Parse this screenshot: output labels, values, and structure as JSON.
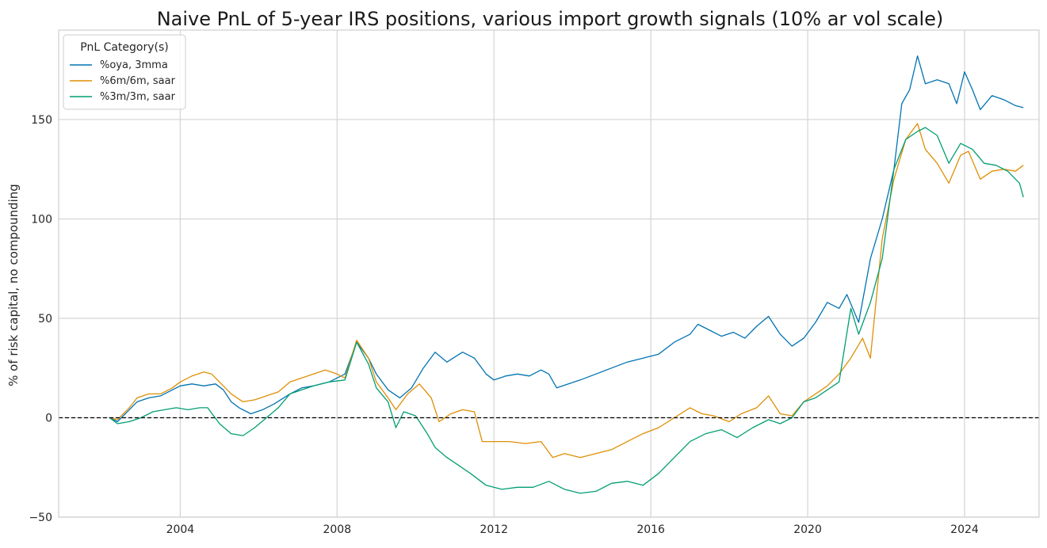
{
  "chart_data": {
    "type": "line",
    "title": "Naive PnL of 5-year IRS positions, various import growth signals (10% ar vol scale)",
    "xlabel": "",
    "ylabel": "% of risk capital, no compounding",
    "xlim": [
      2000.9,
      2025.9
    ],
    "ylim": [
      -50,
      195
    ],
    "x_ticks": [
      2004,
      2008,
      2012,
      2016,
      2020,
      2024
    ],
    "x_tick_labels": [
      "2004",
      "2008",
      "2012",
      "2016",
      "2020",
      "2024"
    ],
    "y_ticks": [
      -50,
      0,
      50,
      100,
      150
    ],
    "y_tick_labels": [
      "−50",
      "0",
      "50",
      "100",
      "150"
    ],
    "grid": true,
    "zero_line": true,
    "legend": {
      "title": "PnL Category(s)",
      "placement": "top-left"
    },
    "series": [
      {
        "name": "%oya, 3mma",
        "color": "#0173b2",
        "points": [
          [
            2002.2,
            0
          ],
          [
            2002.4,
            -2
          ],
          [
            2002.7,
            4
          ],
          [
            2002.9,
            8
          ],
          [
            2003.2,
            10
          ],
          [
            2003.5,
            11
          ],
          [
            2003.8,
            14
          ],
          [
            2004.0,
            16
          ],
          [
            2004.3,
            17
          ],
          [
            2004.6,
            16
          ],
          [
            2004.9,
            17
          ],
          [
            2005.1,
            14
          ],
          [
            2005.3,
            8
          ],
          [
            2005.5,
            5
          ],
          [
            2005.8,
            2
          ],
          [
            2006.1,
            4
          ],
          [
            2006.4,
            7
          ],
          [
            2006.8,
            12
          ],
          [
            2007.1,
            15
          ],
          [
            2007.4,
            16
          ],
          [
            2007.8,
            18
          ],
          [
            2008.2,
            22
          ],
          [
            2008.5,
            38
          ],
          [
            2008.8,
            30
          ],
          [
            2009.0,
            22
          ],
          [
            2009.3,
            14
          ],
          [
            2009.6,
            10
          ],
          [
            2009.9,
            15
          ],
          [
            2010.2,
            25
          ],
          [
            2010.5,
            33
          ],
          [
            2010.8,
            28
          ],
          [
            2011.2,
            33
          ],
          [
            2011.5,
            30
          ],
          [
            2011.8,
            22
          ],
          [
            2012.0,
            19
          ],
          [
            2012.3,
            21
          ],
          [
            2012.6,
            22
          ],
          [
            2012.9,
            21
          ],
          [
            2013.2,
            24
          ],
          [
            2013.4,
            22
          ],
          [
            2013.6,
            15
          ],
          [
            2013.9,
            17
          ],
          [
            2014.2,
            19
          ],
          [
            2014.6,
            22
          ],
          [
            2015.0,
            25
          ],
          [
            2015.4,
            28
          ],
          [
            2015.8,
            30
          ],
          [
            2016.2,
            32
          ],
          [
            2016.6,
            38
          ],
          [
            2017.0,
            42
          ],
          [
            2017.2,
            47
          ],
          [
            2017.5,
            44
          ],
          [
            2017.8,
            41
          ],
          [
            2018.1,
            43
          ],
          [
            2018.4,
            40
          ],
          [
            2018.7,
            46
          ],
          [
            2019.0,
            51
          ],
          [
            2019.3,
            42
          ],
          [
            2019.6,
            36
          ],
          [
            2019.9,
            40
          ],
          [
            2020.2,
            48
          ],
          [
            2020.5,
            58
          ],
          [
            2020.8,
            55
          ],
          [
            2021.0,
            62
          ],
          [
            2021.3,
            48
          ],
          [
            2021.6,
            80
          ],
          [
            2021.9,
            100
          ],
          [
            2022.2,
            125
          ],
          [
            2022.4,
            158
          ],
          [
            2022.6,
            165
          ],
          [
            2022.8,
            182
          ],
          [
            2023.0,
            168
          ],
          [
            2023.3,
            170
          ],
          [
            2023.6,
            168
          ],
          [
            2023.8,
            158
          ],
          [
            2024.0,
            174
          ],
          [
            2024.2,
            165
          ],
          [
            2024.4,
            155
          ],
          [
            2024.7,
            162
          ],
          [
            2025.0,
            160
          ],
          [
            2025.3,
            157
          ],
          [
            2025.5,
            156
          ]
        ]
      },
      {
        "name": "%6m/6m, saar",
        "color": "#de8f05",
        "points": [
          [
            2002.2,
            0
          ],
          [
            2002.4,
            -1
          ],
          [
            2002.7,
            5
          ],
          [
            2002.9,
            10
          ],
          [
            2003.2,
            12
          ],
          [
            2003.5,
            12
          ],
          [
            2003.8,
            15
          ],
          [
            2004.0,
            18
          ],
          [
            2004.3,
            21
          ],
          [
            2004.6,
            23
          ],
          [
            2004.8,
            22
          ],
          [
            2005.0,
            18
          ],
          [
            2005.3,
            12
          ],
          [
            2005.6,
            8
          ],
          [
            2005.9,
            9
          ],
          [
            2006.2,
            11
          ],
          [
            2006.5,
            13
          ],
          [
            2006.8,
            18
          ],
          [
            2007.1,
            20
          ],
          [
            2007.4,
            22
          ],
          [
            2007.7,
            24
          ],
          [
            2008.0,
            22
          ],
          [
            2008.2,
            20
          ],
          [
            2008.5,
            39
          ],
          [
            2008.8,
            30
          ],
          [
            2009.0,
            18
          ],
          [
            2009.3,
            10
          ],
          [
            2009.5,
            4
          ],
          [
            2009.8,
            12
          ],
          [
            2010.1,
            17
          ],
          [
            2010.4,
            10
          ],
          [
            2010.6,
            -2
          ],
          [
            2010.9,
            2
          ],
          [
            2011.2,
            4
          ],
          [
            2011.5,
            3
          ],
          [
            2011.7,
            -12
          ],
          [
            2012.0,
            -12
          ],
          [
            2012.4,
            -12
          ],
          [
            2012.8,
            -13
          ],
          [
            2013.2,
            -12
          ],
          [
            2013.5,
            -20
          ],
          [
            2013.8,
            -18
          ],
          [
            2014.2,
            -20
          ],
          [
            2014.6,
            -18
          ],
          [
            2015.0,
            -16
          ],
          [
            2015.4,
            -12
          ],
          [
            2015.8,
            -8
          ],
          [
            2016.2,
            -5
          ],
          [
            2016.6,
            0
          ],
          [
            2017.0,
            5
          ],
          [
            2017.3,
            2
          ],
          [
            2017.6,
            1
          ],
          [
            2018.0,
            -2
          ],
          [
            2018.3,
            2
          ],
          [
            2018.7,
            5
          ],
          [
            2019.0,
            11
          ],
          [
            2019.3,
            2
          ],
          [
            2019.6,
            1
          ],
          [
            2019.9,
            8
          ],
          [
            2020.2,
            12
          ],
          [
            2020.5,
            16
          ],
          [
            2020.8,
            22
          ],
          [
            2021.1,
            30
          ],
          [
            2021.4,
            40
          ],
          [
            2021.6,
            30
          ],
          [
            2021.9,
            90
          ],
          [
            2022.2,
            120
          ],
          [
            2022.5,
            140
          ],
          [
            2022.8,
            148
          ],
          [
            2023.0,
            135
          ],
          [
            2023.3,
            128
          ],
          [
            2023.6,
            118
          ],
          [
            2023.9,
            132
          ],
          [
            2024.1,
            134
          ],
          [
            2024.4,
            120
          ],
          [
            2024.7,
            124
          ],
          [
            2025.0,
            125
          ],
          [
            2025.3,
            124
          ],
          [
            2025.5,
            127
          ]
        ]
      },
      {
        "name": "%3m/3m, saar",
        "color": "#029e73",
        "points": [
          [
            2002.2,
            0
          ],
          [
            2002.4,
            -3
          ],
          [
            2002.7,
            -2
          ],
          [
            2003.0,
            0
          ],
          [
            2003.3,
            3
          ],
          [
            2003.6,
            4
          ],
          [
            2003.9,
            5
          ],
          [
            2004.2,
            4
          ],
          [
            2004.5,
            5
          ],
          [
            2004.7,
            5
          ],
          [
            2005.0,
            -3
          ],
          [
            2005.3,
            -8
          ],
          [
            2005.6,
            -9
          ],
          [
            2005.9,
            -5
          ],
          [
            2006.2,
            0
          ],
          [
            2006.5,
            5
          ],
          [
            2006.8,
            12
          ],
          [
            2007.1,
            14
          ],
          [
            2007.4,
            16
          ],
          [
            2007.8,
            18
          ],
          [
            2008.2,
            19
          ],
          [
            2008.5,
            38
          ],
          [
            2008.8,
            27
          ],
          [
            2009.0,
            15
          ],
          [
            2009.3,
            8
          ],
          [
            2009.5,
            -5
          ],
          [
            2009.7,
            3
          ],
          [
            2010.0,
            1
          ],
          [
            2010.3,
            -8
          ],
          [
            2010.5,
            -15
          ],
          [
            2010.8,
            -20
          ],
          [
            2011.1,
            -24
          ],
          [
            2011.4,
            -28
          ],
          [
            2011.8,
            -34
          ],
          [
            2012.2,
            -36
          ],
          [
            2012.6,
            -35
          ],
          [
            2013.0,
            -35
          ],
          [
            2013.4,
            -32
          ],
          [
            2013.8,
            -36
          ],
          [
            2014.2,
            -38
          ],
          [
            2014.6,
            -37
          ],
          [
            2015.0,
            -33
          ],
          [
            2015.4,
            -32
          ],
          [
            2015.8,
            -34
          ],
          [
            2016.2,
            -28
          ],
          [
            2016.6,
            -20
          ],
          [
            2017.0,
            -12
          ],
          [
            2017.4,
            -8
          ],
          [
            2017.8,
            -6
          ],
          [
            2018.2,
            -10
          ],
          [
            2018.6,
            -5
          ],
          [
            2019.0,
            -1
          ],
          [
            2019.3,
            -3
          ],
          [
            2019.6,
            0
          ],
          [
            2019.9,
            8
          ],
          [
            2020.2,
            10
          ],
          [
            2020.5,
            14
          ],
          [
            2020.8,
            18
          ],
          [
            2021.1,
            55
          ],
          [
            2021.3,
            42
          ],
          [
            2021.6,
            58
          ],
          [
            2021.9,
            80
          ],
          [
            2022.2,
            125
          ],
          [
            2022.5,
            140
          ],
          [
            2022.8,
            144
          ],
          [
            2023.0,
            146
          ],
          [
            2023.3,
            142
          ],
          [
            2023.6,
            128
          ],
          [
            2023.9,
            138
          ],
          [
            2024.2,
            135
          ],
          [
            2024.5,
            128
          ],
          [
            2024.8,
            127
          ],
          [
            2025.1,
            124
          ],
          [
            2025.4,
            118
          ],
          [
            2025.5,
            111
          ]
        ]
      }
    ]
  }
}
